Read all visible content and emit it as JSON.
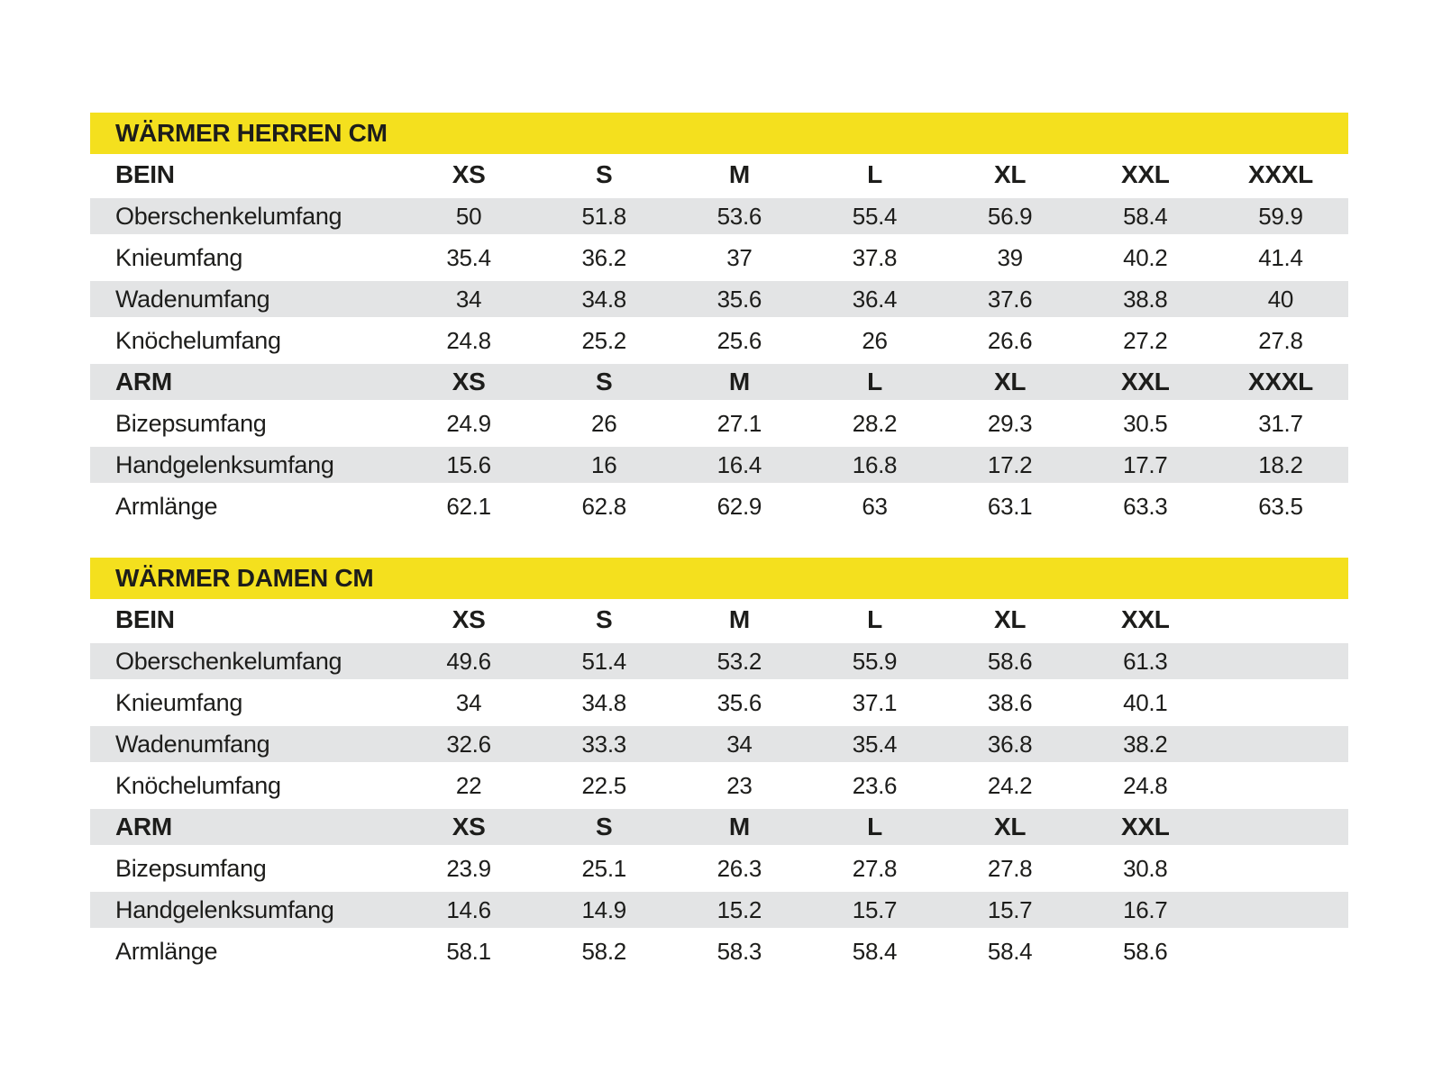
{
  "colors": {
    "title_bg": "#F4E01E",
    "row_alt_bg": "#E3E4E5",
    "text": "#1D1D1B",
    "page_bg": "#FFFFFF"
  },
  "chart_data": {
    "type": "table",
    "tables": [
      "WÄRMER HERREN CM",
      "WÄRMER DAMEN CM"
    ]
  },
  "tables": [
    {
      "title": "WÄRMER HERREN CM",
      "sections": [
        {
          "header": {
            "label": "BEIN",
            "sizes": [
              "XS",
              "S",
              "M",
              "L",
              "XL",
              "XXL",
              "XXXL"
            ],
            "shaded": false
          },
          "rows": [
            {
              "label": "Oberschenkelumfang",
              "values": [
                "50",
                "51.8",
                "53.6",
                "55.4",
                "56.9",
                "58.4",
                "59.9"
              ],
              "shaded": true
            },
            {
              "label": "Knieumfang",
              "values": [
                "35.4",
                "36.2",
                "37",
                "37.8",
                "39",
                "40.2",
                "41.4"
              ],
              "shaded": false
            },
            {
              "label": "Wadenumfang",
              "values": [
                "34",
                "34.8",
                "35.6",
                "36.4",
                "37.6",
                "38.8",
                "40"
              ],
              "shaded": true
            },
            {
              "label": "Knöchelumfang",
              "values": [
                "24.8",
                "25.2",
                "25.6",
                "26",
                "26.6",
                "27.2",
                "27.8"
              ],
              "shaded": false
            }
          ]
        },
        {
          "header": {
            "label": "ARM",
            "sizes": [
              "XS",
              "S",
              "M",
              "L",
              "XL",
              "XXL",
              "XXXL"
            ],
            "shaded": true
          },
          "rows": [
            {
              "label": "Bizepsumfang",
              "values": [
                "24.9",
                "26",
                "27.1",
                "28.2",
                "29.3",
                "30.5",
                "31.7"
              ],
              "shaded": false
            },
            {
              "label": "Handgelenksumfang",
              "values": [
                "15.6",
                "16",
                "16.4",
                "16.8",
                "17.2",
                "17.7",
                "18.2"
              ],
              "shaded": true
            },
            {
              "label": "Armlänge",
              "values": [
                "62.1",
                "62.8",
                "62.9",
                "63",
                "63.1",
                "63.3",
                "63.5"
              ],
              "shaded": false
            }
          ]
        }
      ]
    },
    {
      "title": "WÄRMER DAMEN CM",
      "sections": [
        {
          "header": {
            "label": "BEIN",
            "sizes": [
              "XS",
              "S",
              "M",
              "L",
              "XL",
              "XXL"
            ],
            "shaded": false
          },
          "rows": [
            {
              "label": "Oberschenkelumfang",
              "values": [
                "49.6",
                "51.4",
                "53.2",
                "55.9",
                "58.6",
                "61.3"
              ],
              "shaded": true
            },
            {
              "label": "Knieumfang",
              "values": [
                "34",
                "34.8",
                "35.6",
                "37.1",
                "38.6",
                "40.1"
              ],
              "shaded": false
            },
            {
              "label": "Wadenumfang",
              "values": [
                "32.6",
                "33.3",
                "34",
                "35.4",
                "36.8",
                "38.2"
              ],
              "shaded": true
            },
            {
              "label": "Knöchelumfang",
              "values": [
                "22",
                "22.5",
                "23",
                "23.6",
                "24.2",
                "24.8"
              ],
              "shaded": false
            }
          ]
        },
        {
          "header": {
            "label": "ARM",
            "sizes": [
              "XS",
              "S",
              "M",
              "L",
              "XL",
              "XXL"
            ],
            "shaded": true
          },
          "rows": [
            {
              "label": "Bizepsumfang",
              "values": [
                "23.9",
                "25.1",
                "26.3",
                "27.8",
                "27.8",
                "30.8"
              ],
              "shaded": false
            },
            {
              "label": "Handgelenksumfang",
              "values": [
                "14.6",
                "14.9",
                "15.2",
                "15.7",
                "15.7",
                "16.7"
              ],
              "shaded": true
            },
            {
              "label": "Armlänge",
              "values": [
                "58.1",
                "58.2",
                "58.3",
                "58.4",
                "58.4",
                "58.6"
              ],
              "shaded": false
            }
          ]
        }
      ]
    }
  ]
}
